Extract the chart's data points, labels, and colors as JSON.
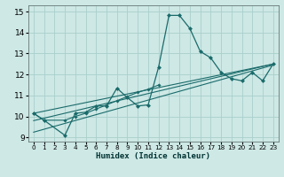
{
  "xlabel": "Humidex (Indice chaleur)",
  "xlim": [
    -0.5,
    23.5
  ],
  "ylim": [
    8.8,
    15.3
  ],
  "xticks": [
    0,
    1,
    2,
    3,
    4,
    5,
    6,
    7,
    8,
    9,
    10,
    11,
    12,
    13,
    14,
    15,
    16,
    17,
    18,
    19,
    20,
    21,
    22,
    23
  ],
  "yticks": [
    9,
    10,
    11,
    12,
    13,
    14,
    15
  ],
  "bg_color": "#cde8e5",
  "line_color": "#1a6b6b",
  "grid_color": "#aacfcc",
  "line1": {
    "x": [
      0,
      1,
      3,
      4,
      5,
      6,
      7,
      8,
      9,
      10,
      11,
      12,
      13,
      14,
      15,
      16,
      17,
      18,
      19,
      20,
      21,
      22,
      23
    ],
    "y": [
      10.15,
      9.82,
      9.1,
      10.15,
      10.2,
      10.5,
      10.5,
      11.35,
      10.9,
      10.5,
      10.55,
      12.35,
      14.82,
      14.82,
      14.2,
      13.1,
      12.8,
      12.1,
      11.8,
      11.7,
      12.1,
      11.7,
      12.5
    ]
  },
  "line2": {
    "x": [
      0,
      1,
      3,
      4,
      5,
      6,
      7,
      8,
      9,
      10,
      11,
      12
    ],
    "y": [
      10.15,
      9.82,
      9.82,
      10.0,
      10.15,
      10.35,
      10.55,
      10.75,
      10.95,
      11.15,
      11.3,
      11.5
    ]
  },
  "line3": {
    "x": [
      0,
      23
    ],
    "y": [
      9.25,
      12.45
    ]
  },
  "line4": {
    "x": [
      0,
      23
    ],
    "y": [
      9.8,
      12.5
    ]
  },
  "line5": {
    "x": [
      0,
      23
    ],
    "y": [
      10.15,
      12.5
    ]
  }
}
